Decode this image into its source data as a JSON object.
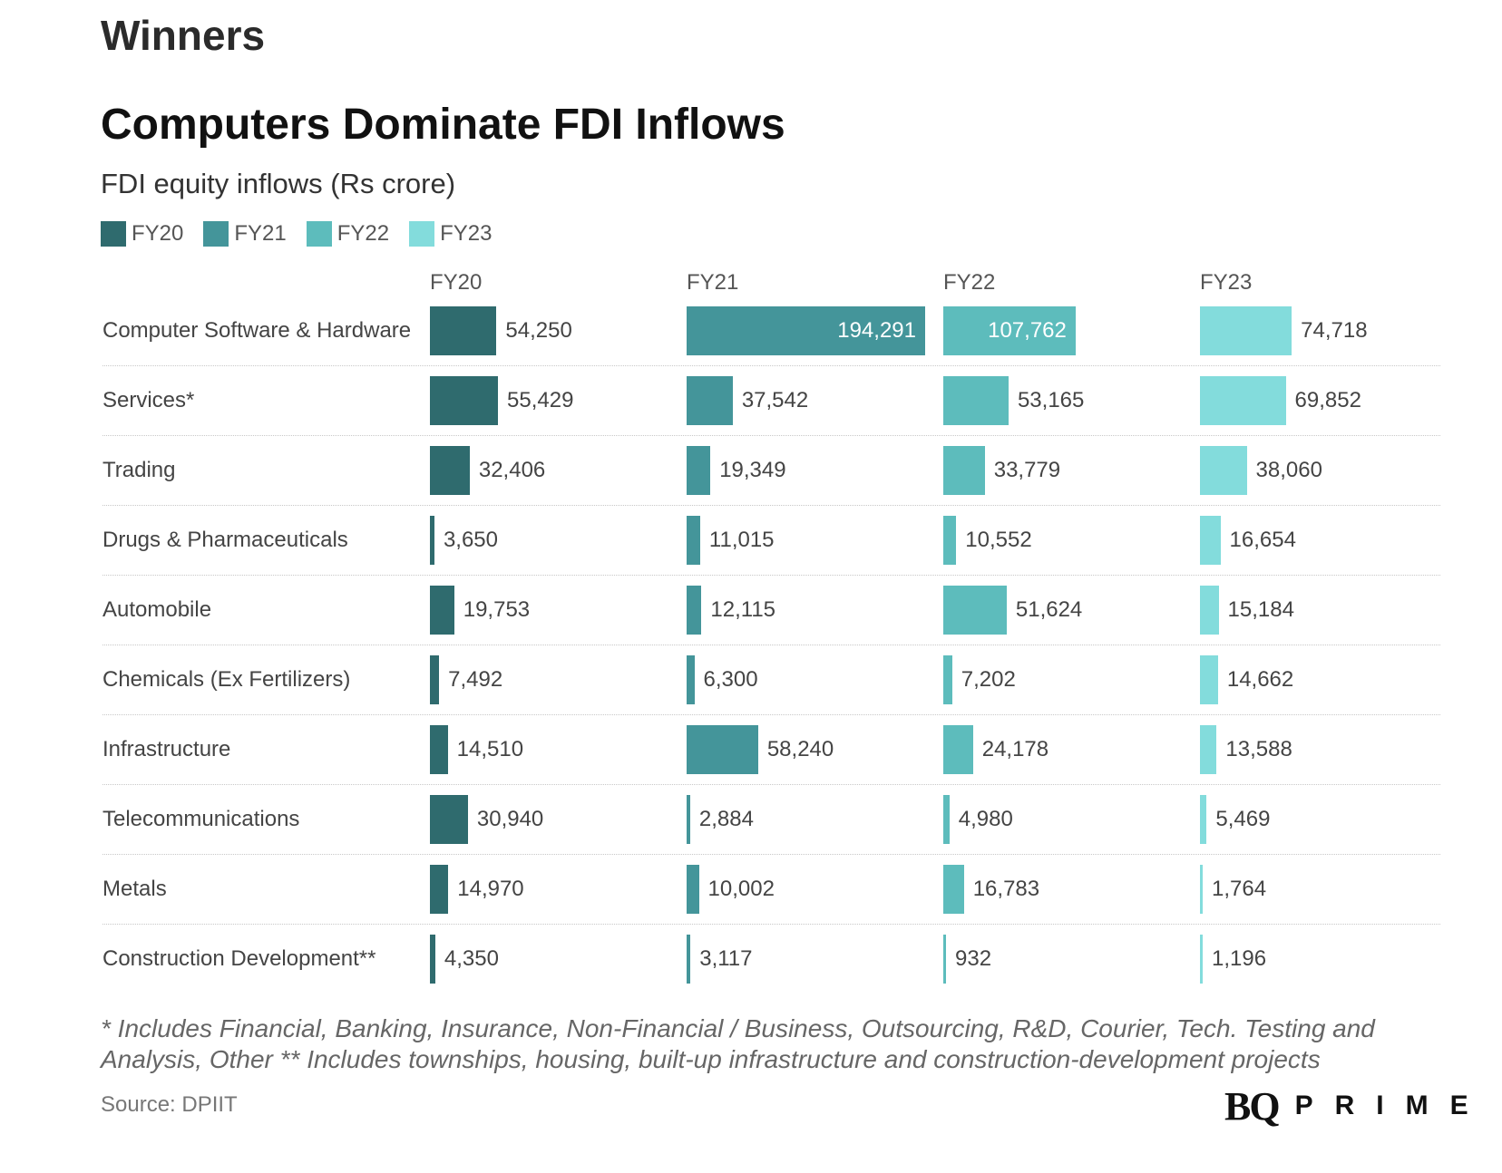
{
  "kicker": "Winners",
  "title": "Computers Dominate FDI Inflows",
  "subtitle": "FDI equity inflows (Rs crore)",
  "colors": {
    "FY20": "#2f6b6e",
    "FY21": "#44959a",
    "FY22": "#5dbcbc",
    "FY23": "#83dcdc"
  },
  "chart_data": {
    "type": "bar",
    "orientation": "horizontal",
    "layout": "small-multiples",
    "title": "Computers Dominate FDI Inflows",
    "subtitle": "FDI equity inflows (Rs crore)",
    "legend": [
      "FY20",
      "FY21",
      "FY22",
      "FY23"
    ],
    "legend_position": "top-left",
    "categories": [
      "Computer Software & Hardware",
      "Services*",
      "Trading",
      "Drugs & Pharmaceuticals",
      "Automobile",
      "Chemicals (Ex Fertilizers)",
      "Infrastructure",
      "Telecommunications",
      "Metals",
      "Construction Development**"
    ],
    "series": [
      {
        "name": "FY20",
        "values": [
          54250,
          55429,
          32406,
          3650,
          19753,
          7492,
          14510,
          30940,
          14970,
          4350
        ],
        "labels": [
          "54,250",
          "55,429",
          "32,406",
          "3,650",
          "19,753",
          "7,492",
          "14,510",
          "30,940",
          "14,970",
          "4,350"
        ]
      },
      {
        "name": "FY21",
        "values": [
          194291,
          37542,
          19349,
          11015,
          12115,
          6300,
          58240,
          2884,
          10002,
          3117
        ],
        "labels": [
          "194,291",
          "37,542",
          "19,349",
          "11,015",
          "12,115",
          "6,300",
          "58,240",
          "2,884",
          "10,002",
          "3,117"
        ]
      },
      {
        "name": "FY22",
        "values": [
          107762,
          53165,
          33779,
          10552,
          51624,
          7202,
          24178,
          4980,
          16783,
          932
        ],
        "labels": [
          "107,762",
          "53,165",
          "33,779",
          "10,552",
          "51,624",
          "7,202",
          "24,178",
          "4,980",
          "16,783",
          "932"
        ]
      },
      {
        "name": "FY23",
        "values": [
          74718,
          69852,
          38060,
          16654,
          15184,
          14662,
          13588,
          5469,
          1764,
          1196
        ],
        "labels": [
          "74,718",
          "69,852",
          "38,060",
          "16,654",
          "15,184",
          "14,662",
          "13,588",
          "5,469",
          "1,764",
          "1,196"
        ]
      }
    ],
    "grid": false
  },
  "footnote": "* Includes Financial, Banking, Insurance, Non-Financial / Business, Outsourcing, R&D, Courier, Tech. Testing and Analysis, Other ** Includes townships, housing, built-up infrastructure and construction-development projects",
  "source": "Source: DPIIT",
  "brand": {
    "mark": "BQ",
    "word": "PRIME"
  }
}
